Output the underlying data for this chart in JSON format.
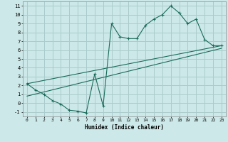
{
  "title": "",
  "xlabel": "Humidex (Indice chaleur)",
  "bg_color": "#cce8e8",
  "grid_color": "#aacccc",
  "line_color": "#1a6b5a",
  "xlim": [
    -0.5,
    23.5
  ],
  "ylim": [
    -1.5,
    11.5
  ],
  "xticks": [
    0,
    1,
    2,
    3,
    4,
    5,
    6,
    7,
    8,
    9,
    10,
    11,
    12,
    13,
    14,
    15,
    16,
    17,
    18,
    19,
    20,
    21,
    22,
    23
  ],
  "yticks": [
    -1,
    0,
    1,
    2,
    3,
    4,
    5,
    6,
    7,
    8,
    9,
    10,
    11
  ],
  "line1_x": [
    0,
    1,
    2,
    3,
    4,
    5,
    6,
    7,
    8,
    9,
    10,
    11,
    12,
    13,
    14,
    15,
    16,
    17,
    18,
    19,
    20,
    21,
    22,
    23
  ],
  "line1_y": [
    2.2,
    1.5,
    1.0,
    0.3,
    -0.1,
    -0.8,
    -0.9,
    -1.1,
    3.3,
    -0.3,
    9.0,
    7.5,
    7.3,
    7.3,
    8.8,
    9.5,
    10.0,
    11.0,
    10.2,
    9.0,
    9.5,
    7.2,
    6.5,
    6.5
  ],
  "line2_x": [
    0,
    23
  ],
  "line2_y": [
    2.2,
    6.5
  ],
  "line3_x": [
    0,
    23
  ],
  "line3_y": [
    0.8,
    6.2
  ]
}
